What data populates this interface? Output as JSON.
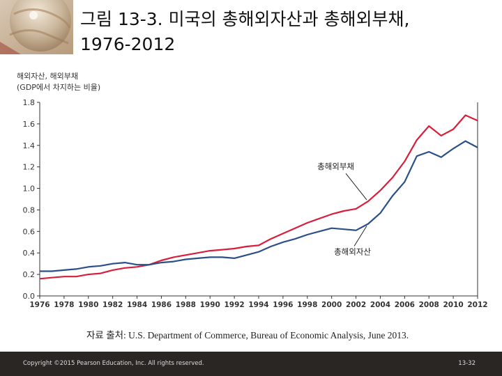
{
  "slide": {
    "title_line1": "그림 13-3. 미국의 총해외자산과 총해외부채,",
    "title_line2": "1976-2012",
    "source": "자료 출처: U.S. Department of Commerce, Bureau of Economic Analysis, June 2013.",
    "copyright": "Copyright ©2015 Pearson Education, Inc. All rights reserved.",
    "page_number": "13-32"
  },
  "colors": {
    "liabilities": "#d81e3a",
    "assets": "#2b4f8a",
    "footer_bg": "#2a2624"
  },
  "chart_data": {
    "type": "line",
    "ylabel_line1": "해외자산, 해외부채",
    "ylabel_line2": "(GDP에서 차지하는 비율)",
    "xlabel": "",
    "xlim": [
      1976,
      2012
    ],
    "ylim": [
      0.0,
      1.8
    ],
    "x_ticks": [
      "1976",
      "1978",
      "1980",
      "1982",
      "1984",
      "1986",
      "1988",
      "1990",
      "1992",
      "1994",
      "1996",
      "1998",
      "2000",
      "2002",
      "2004",
      "2006",
      "2008",
      "2010",
      "2012"
    ],
    "y_ticks": [
      "0.0",
      "0.2",
      "0.4",
      "0.6",
      "0.8",
      "1.0",
      "1.2",
      "1.4",
      "1.6",
      "1.8"
    ],
    "x": [
      1976,
      1977,
      1978,
      1979,
      1980,
      1981,
      1982,
      1983,
      1984,
      1985,
      1986,
      1987,
      1988,
      1989,
      1990,
      1991,
      1992,
      1993,
      1994,
      1995,
      1996,
      1997,
      1998,
      1999,
      2000,
      2001,
      2002,
      2003,
      2004,
      2005,
      2006,
      2007,
      2008,
      2009,
      2010,
      2011,
      2012
    ],
    "series": [
      {
        "name": "총해외부채",
        "key": "liabilities",
        "values": [
          0.16,
          0.17,
          0.18,
          0.18,
          0.2,
          0.21,
          0.24,
          0.26,
          0.27,
          0.29,
          0.33,
          0.36,
          0.38,
          0.4,
          0.42,
          0.43,
          0.44,
          0.46,
          0.47,
          0.53,
          0.58,
          0.63,
          0.68,
          0.72,
          0.76,
          0.79,
          0.81,
          0.88,
          0.98,
          1.1,
          1.25,
          1.45,
          1.58,
          1.49,
          1.55,
          1.68,
          1.63
        ]
      },
      {
        "name": "총해외자산",
        "key": "assets",
        "values": [
          0.23,
          0.23,
          0.24,
          0.25,
          0.27,
          0.28,
          0.3,
          0.31,
          0.29,
          0.29,
          0.31,
          0.32,
          0.34,
          0.35,
          0.36,
          0.36,
          0.35,
          0.38,
          0.41,
          0.46,
          0.5,
          0.53,
          0.57,
          0.6,
          0.63,
          0.62,
          0.61,
          0.67,
          0.77,
          0.93,
          1.06,
          1.3,
          1.34,
          1.29,
          1.37,
          1.44,
          1.38
        ]
      }
    ],
    "annotations": [
      {
        "text": "총해외부채",
        "series": "liabilities",
        "x": 2003
      },
      {
        "text": "총해외자산",
        "series": "assets",
        "x": 2003
      }
    ]
  }
}
